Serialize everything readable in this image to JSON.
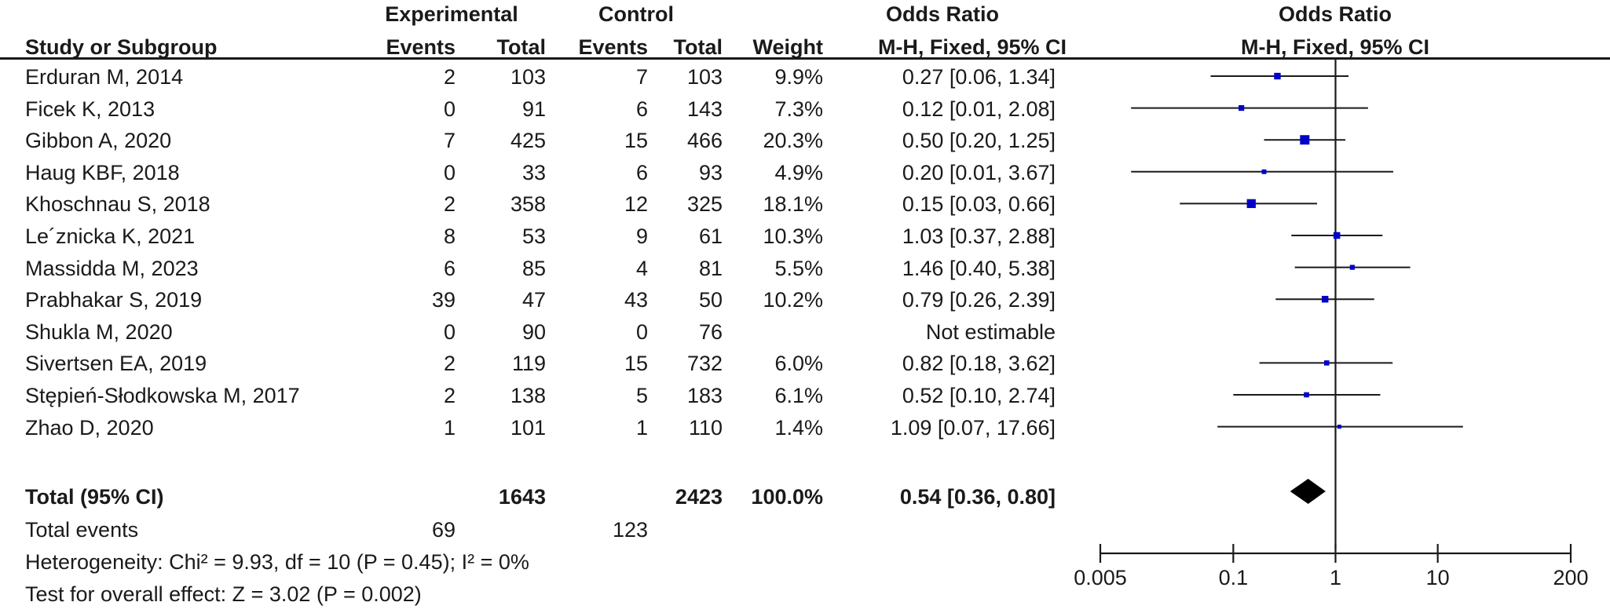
{
  "header": {
    "experimental": "Experimental",
    "control": "Control",
    "or_left": "Odds Ratio",
    "or_right": "Odds Ratio",
    "study": "Study or Subgroup",
    "events1": "Events",
    "total1": "Total",
    "events2": "Events",
    "total2": "Total",
    "weight": "Weight",
    "method_left": "M-H, Fixed, 95% CI",
    "method_right": "M-H, Fixed, 95% CI"
  },
  "studies": [
    {
      "name": "Erduran M, 2014",
      "exp_events": "2",
      "exp_total": "103",
      "ctl_events": "7",
      "ctl_total": "103",
      "weight": "9.9%",
      "ci_text": "0.27 [0.06, 1.34]",
      "or": 0.27,
      "lo": 0.06,
      "hi": 1.34,
      "w": 9.9
    },
    {
      "name": "Ficek K, 2013",
      "exp_events": "0",
      "exp_total": "91",
      "ctl_events": "6",
      "ctl_total": "143",
      "weight": "7.3%",
      "ci_text": "0.12 [0.01, 2.08]",
      "or": 0.12,
      "lo": 0.01,
      "hi": 2.08,
      "w": 7.3
    },
    {
      "name": "Gibbon A, 2020",
      "exp_events": "7",
      "exp_total": "425",
      "ctl_events": "15",
      "ctl_total": "466",
      "weight": "20.3%",
      "ci_text": "0.50 [0.20, 1.25]",
      "or": 0.5,
      "lo": 0.2,
      "hi": 1.25,
      "w": 20.3
    },
    {
      "name": "Haug KBF, 2018",
      "exp_events": "0",
      "exp_total": "33",
      "ctl_events": "6",
      "ctl_total": "93",
      "weight": "4.9%",
      "ci_text": "0.20 [0.01, 3.67]",
      "or": 0.2,
      "lo": 0.01,
      "hi": 3.67,
      "w": 4.9
    },
    {
      "name": "Khoschnau S, 2018",
      "exp_events": "2",
      "exp_total": "358",
      "ctl_events": "12",
      "ctl_total": "325",
      "weight": "18.1%",
      "ci_text": "0.15 [0.03, 0.66]",
      "or": 0.15,
      "lo": 0.03,
      "hi": 0.66,
      "w": 18.1
    },
    {
      "name": "Le´znicka K, 2021",
      "exp_events": "8",
      "exp_total": "53",
      "ctl_events": "9",
      "ctl_total": "61",
      "weight": "10.3%",
      "ci_text": "1.03 [0.37, 2.88]",
      "or": 1.03,
      "lo": 0.37,
      "hi": 2.88,
      "w": 10.3
    },
    {
      "name": "Massidda M, 2023",
      "exp_events": "6",
      "exp_total": "85",
      "ctl_events": "4",
      "ctl_total": "81",
      "weight": "5.5%",
      "ci_text": "1.46 [0.40, 5.38]",
      "or": 1.46,
      "lo": 0.4,
      "hi": 5.38,
      "w": 5.5
    },
    {
      "name": "Prabhakar S, 2019",
      "exp_events": "39",
      "exp_total": "47",
      "ctl_events": "43",
      "ctl_total": "50",
      "weight": "10.2%",
      "ci_text": "0.79 [0.26, 2.39]",
      "or": 0.79,
      "lo": 0.26,
      "hi": 2.39,
      "w": 10.2
    },
    {
      "name": "Shukla M, 2020",
      "exp_events": "0",
      "exp_total": "90",
      "ctl_events": "0",
      "ctl_total": "76",
      "weight": "",
      "ci_text": "Not estimable",
      "or": null,
      "lo": null,
      "hi": null,
      "w": 0
    },
    {
      "name": "Sivertsen EA, 2019",
      "exp_events": "2",
      "exp_total": "119",
      "ctl_events": "15",
      "ctl_total": "732",
      "weight": "6.0%",
      "ci_text": "0.82 [0.18, 3.62]",
      "or": 0.82,
      "lo": 0.18,
      "hi": 3.62,
      "w": 6.0
    },
    {
      "name": "Stępień-Słodkowska M, 2017",
      "exp_events": "2",
      "exp_total": "138",
      "ctl_events": "5",
      "ctl_total": "183",
      "weight": "6.1%",
      "ci_text": "0.52 [0.10, 2.74]",
      "or": 0.52,
      "lo": 0.1,
      "hi": 2.74,
      "w": 6.1
    },
    {
      "name": "Zhao D, 2020",
      "exp_events": "1",
      "exp_total": "101",
      "ctl_events": "1",
      "ctl_total": "110",
      "weight": "1.4%",
      "ci_text": "1.09 [0.07, 17.66]",
      "or": 1.09,
      "lo": 0.07,
      "hi": 17.66,
      "w": 1.4
    }
  ],
  "total": {
    "label": "Total (95% CI)",
    "exp_total": "1643",
    "ctl_total": "2423",
    "weight": "100.0%",
    "ci_text": "0.54 [0.36, 0.80]",
    "or": 0.54,
    "lo": 0.36,
    "hi": 0.8
  },
  "events": {
    "label": "Total events",
    "exp": "69",
    "ctl": "123"
  },
  "heterogeneity": "Heterogeneity: Chi² = 9.93, df = 10 (P = 0.45); I² = 0%",
  "overall_effect": "Test for overall effect: Z = 3.02 (P = 0.002)",
  "colors": {
    "marker": "#0000c8",
    "line": "#1a1a1a",
    "diamond": "#000000"
  },
  "chart_data": {
    "type": "scatter",
    "subtype": "forest-plot",
    "title": "Odds Ratio",
    "xlabel": "M-H, Fixed, 95% CI",
    "x_scale": "log",
    "xlim": [
      0.005,
      200
    ],
    "ticks": [
      0.005,
      0.1,
      1,
      10,
      200
    ],
    "tick_labels": [
      "0.005",
      "0.1",
      "1",
      "10",
      "200"
    ],
    "reference_line": 1,
    "grid": false
  }
}
